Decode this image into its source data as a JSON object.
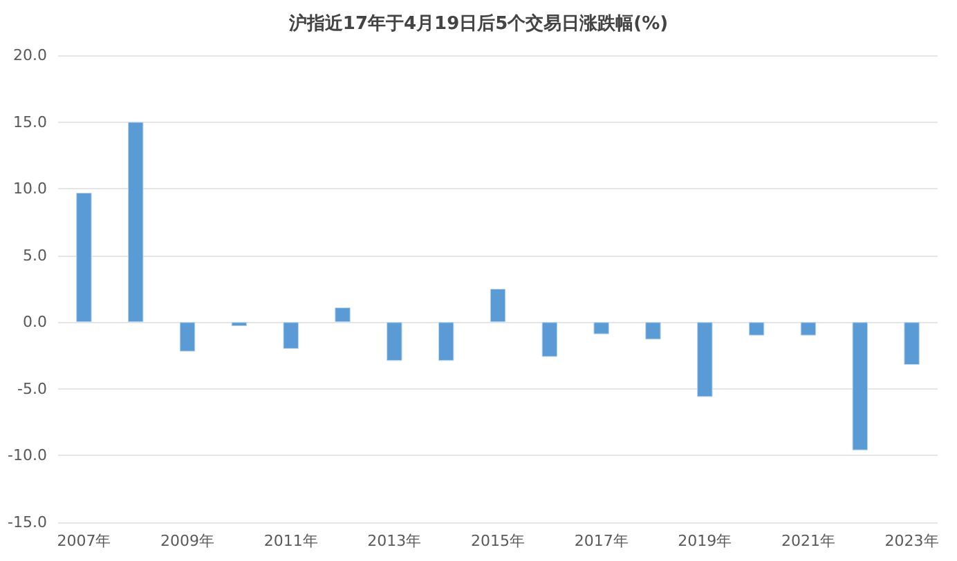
{
  "chart_data": {
    "type": "bar",
    "title": "沪指近17年于4月19日后5个交易日涨跌幅(%)",
    "categories": [
      "2007年",
      null,
      "2009年",
      null,
      "2011年",
      null,
      "2013年",
      null,
      "2015年",
      null,
      "2017年",
      null,
      "2019年",
      null,
      "2021年",
      null,
      "2023年"
    ],
    "values": [
      9.7,
      15.0,
      -2.2,
      -0.3,
      -2.0,
      1.1,
      -2.9,
      -2.9,
      2.5,
      -2.6,
      -0.9,
      -1.3,
      -5.6,
      -1.0,
      -1.0,
      -9.6,
      -3.2
    ],
    "color": "#5b9bd5",
    "ylim": [
      -15,
      20
    ],
    "yticks": [
      {
        "value": -15,
        "label": "-15.0"
      },
      {
        "value": -10,
        "label": "-10.0"
      },
      {
        "value": -5,
        "label": "-5.0"
      },
      {
        "value": 0,
        "label": "0.0"
      },
      {
        "value": 5,
        "label": "5.0"
      },
      {
        "value": 10,
        "label": "10.0"
      },
      {
        "value": 15,
        "label": "15.0"
      },
      {
        "value": 20,
        "label": "20.0"
      }
    ],
    "grid": "y"
  }
}
